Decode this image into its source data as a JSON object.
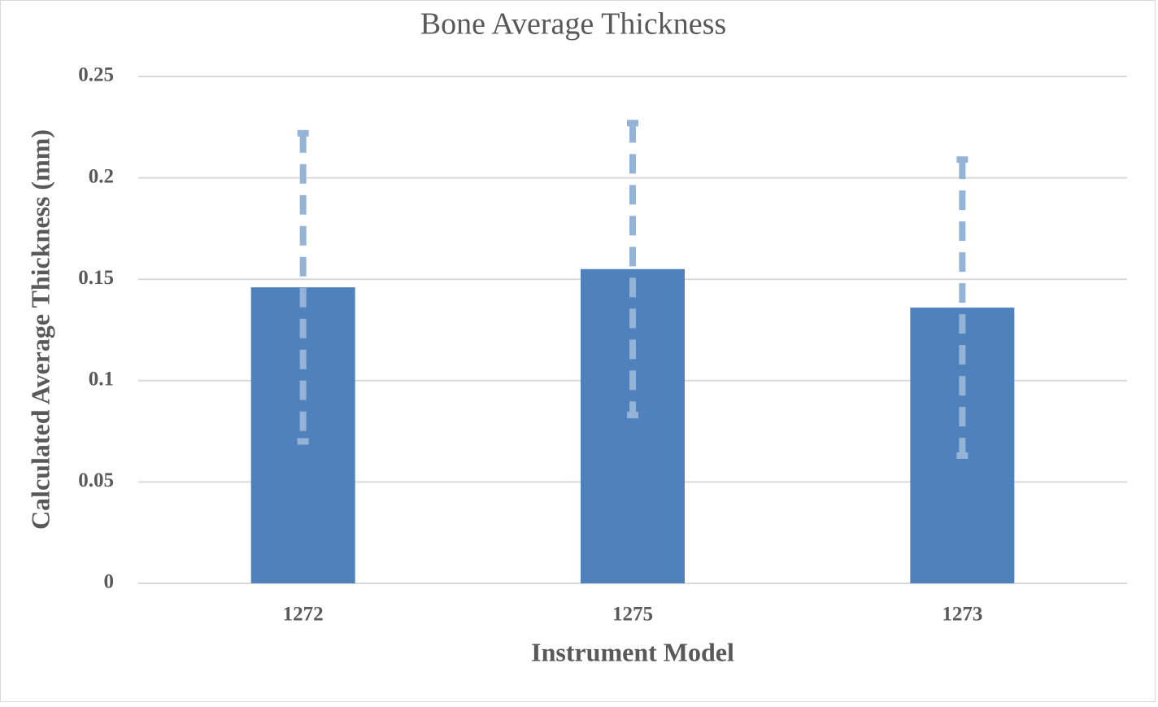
{
  "chart_data": {
    "type": "bar",
    "title": "Bone Average Thickness",
    "x_label": "Instrument Model",
    "y_label": "Calculated Average Thickness (mm)",
    "categories": [
      "1272",
      "1275",
      "1273"
    ],
    "values": [
      0.146,
      0.155,
      0.136
    ],
    "errors": [
      0.076,
      0.072,
      0.073
    ],
    "color": "#4f81bd",
    "error_color": "#95b3d7",
    "ylim": [
      0,
      0.25
    ],
    "yticks": [
      0,
      0.05,
      0.1,
      0.15,
      0.2,
      0.25
    ],
    "grid": true
  }
}
